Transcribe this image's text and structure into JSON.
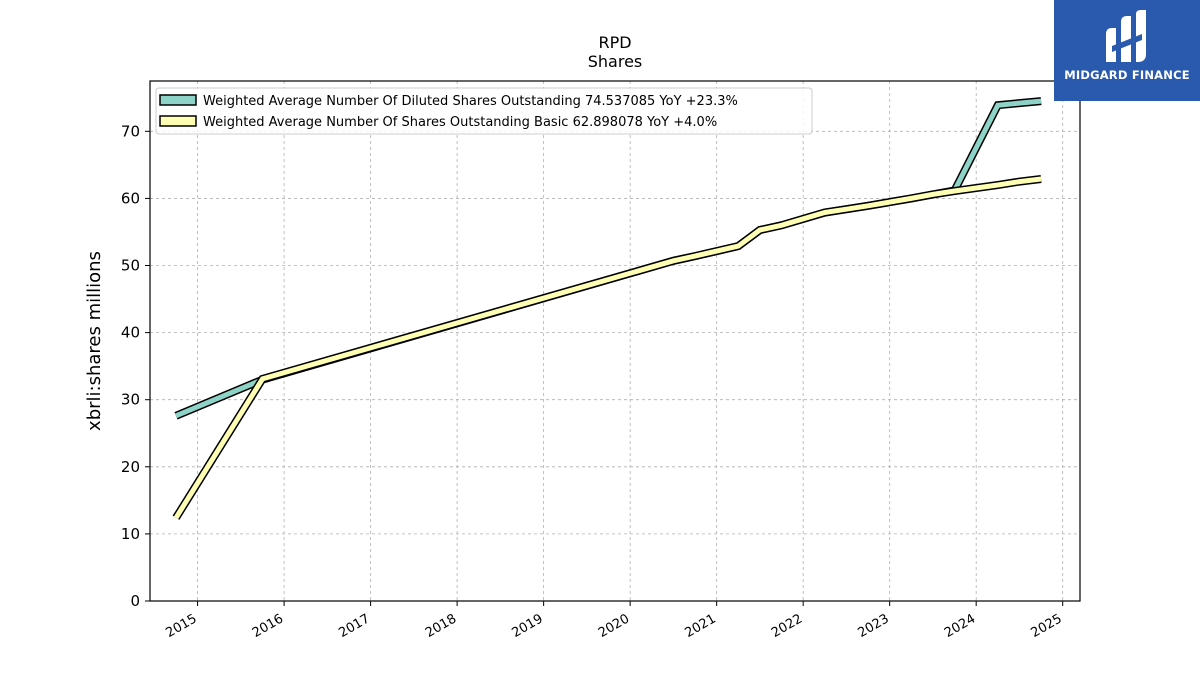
{
  "chart_data": {
    "type": "line",
    "title": "RPD",
    "subtitle": "Shares",
    "ylabel": "xbrli:shares millions",
    "xlabel": "",
    "ylim": [
      0,
      77.5
    ],
    "xlim": [
      2014.45,
      2025.2
    ],
    "yticks": [
      "0",
      "10",
      "20",
      "30",
      "40",
      "50",
      "60",
      "70"
    ],
    "ytick_values": [
      0,
      10,
      20,
      30,
      40,
      50,
      60,
      70
    ],
    "xticks": [
      "2015",
      "2016",
      "2017",
      "2018",
      "2019",
      "2020",
      "2021",
      "2022",
      "2023",
      "2024",
      "2025"
    ],
    "xtick_values": [
      2015,
      2016,
      2017,
      2018,
      2019,
      2020,
      2021,
      2022,
      2023,
      2024,
      2025
    ],
    "grid": true,
    "legend_position": "top-left",
    "series": [
      {
        "name": "Weighted Average Number Of Diluted Shares Outstanding  74.537085 YoY +23.3%",
        "color": "#8dd3c7",
        "x": [
          2014.75,
          2015.75,
          2020.5,
          2020.75,
          2021.25,
          2021.5,
          2021.75,
          2022.25,
          2022.5,
          2022.75,
          2023.25,
          2023.5,
          2023.75,
          2024.25,
          2024.5,
          2024.75
        ],
        "y": [
          27.6,
          33.0,
          50.7,
          51.4,
          52.9,
          55.3,
          56.0,
          57.9,
          58.4,
          58.9,
          60.0,
          60.6,
          61.2,
          73.9,
          74.2,
          74.5
        ]
      },
      {
        "name": "Weighted Average Number Of Shares Outstanding Basic  62.898078 YoY +4.0%",
        "color": "#ffffb3",
        "x": [
          2014.75,
          2015.75,
          2020.5,
          2020.75,
          2021.25,
          2021.5,
          2021.75,
          2022.25,
          2022.5,
          2022.75,
          2023.25,
          2023.5,
          2023.75,
          2024.25,
          2024.5,
          2024.75
        ],
        "y": [
          12.4,
          33.1,
          50.7,
          51.4,
          52.9,
          55.3,
          56.0,
          57.9,
          58.4,
          58.9,
          60.0,
          60.6,
          61.1,
          62.0,
          62.5,
          62.9
        ]
      }
    ]
  },
  "logo": {
    "text": "MIDGARD FINANCE",
    "bg_color": "#2a5aad"
  }
}
